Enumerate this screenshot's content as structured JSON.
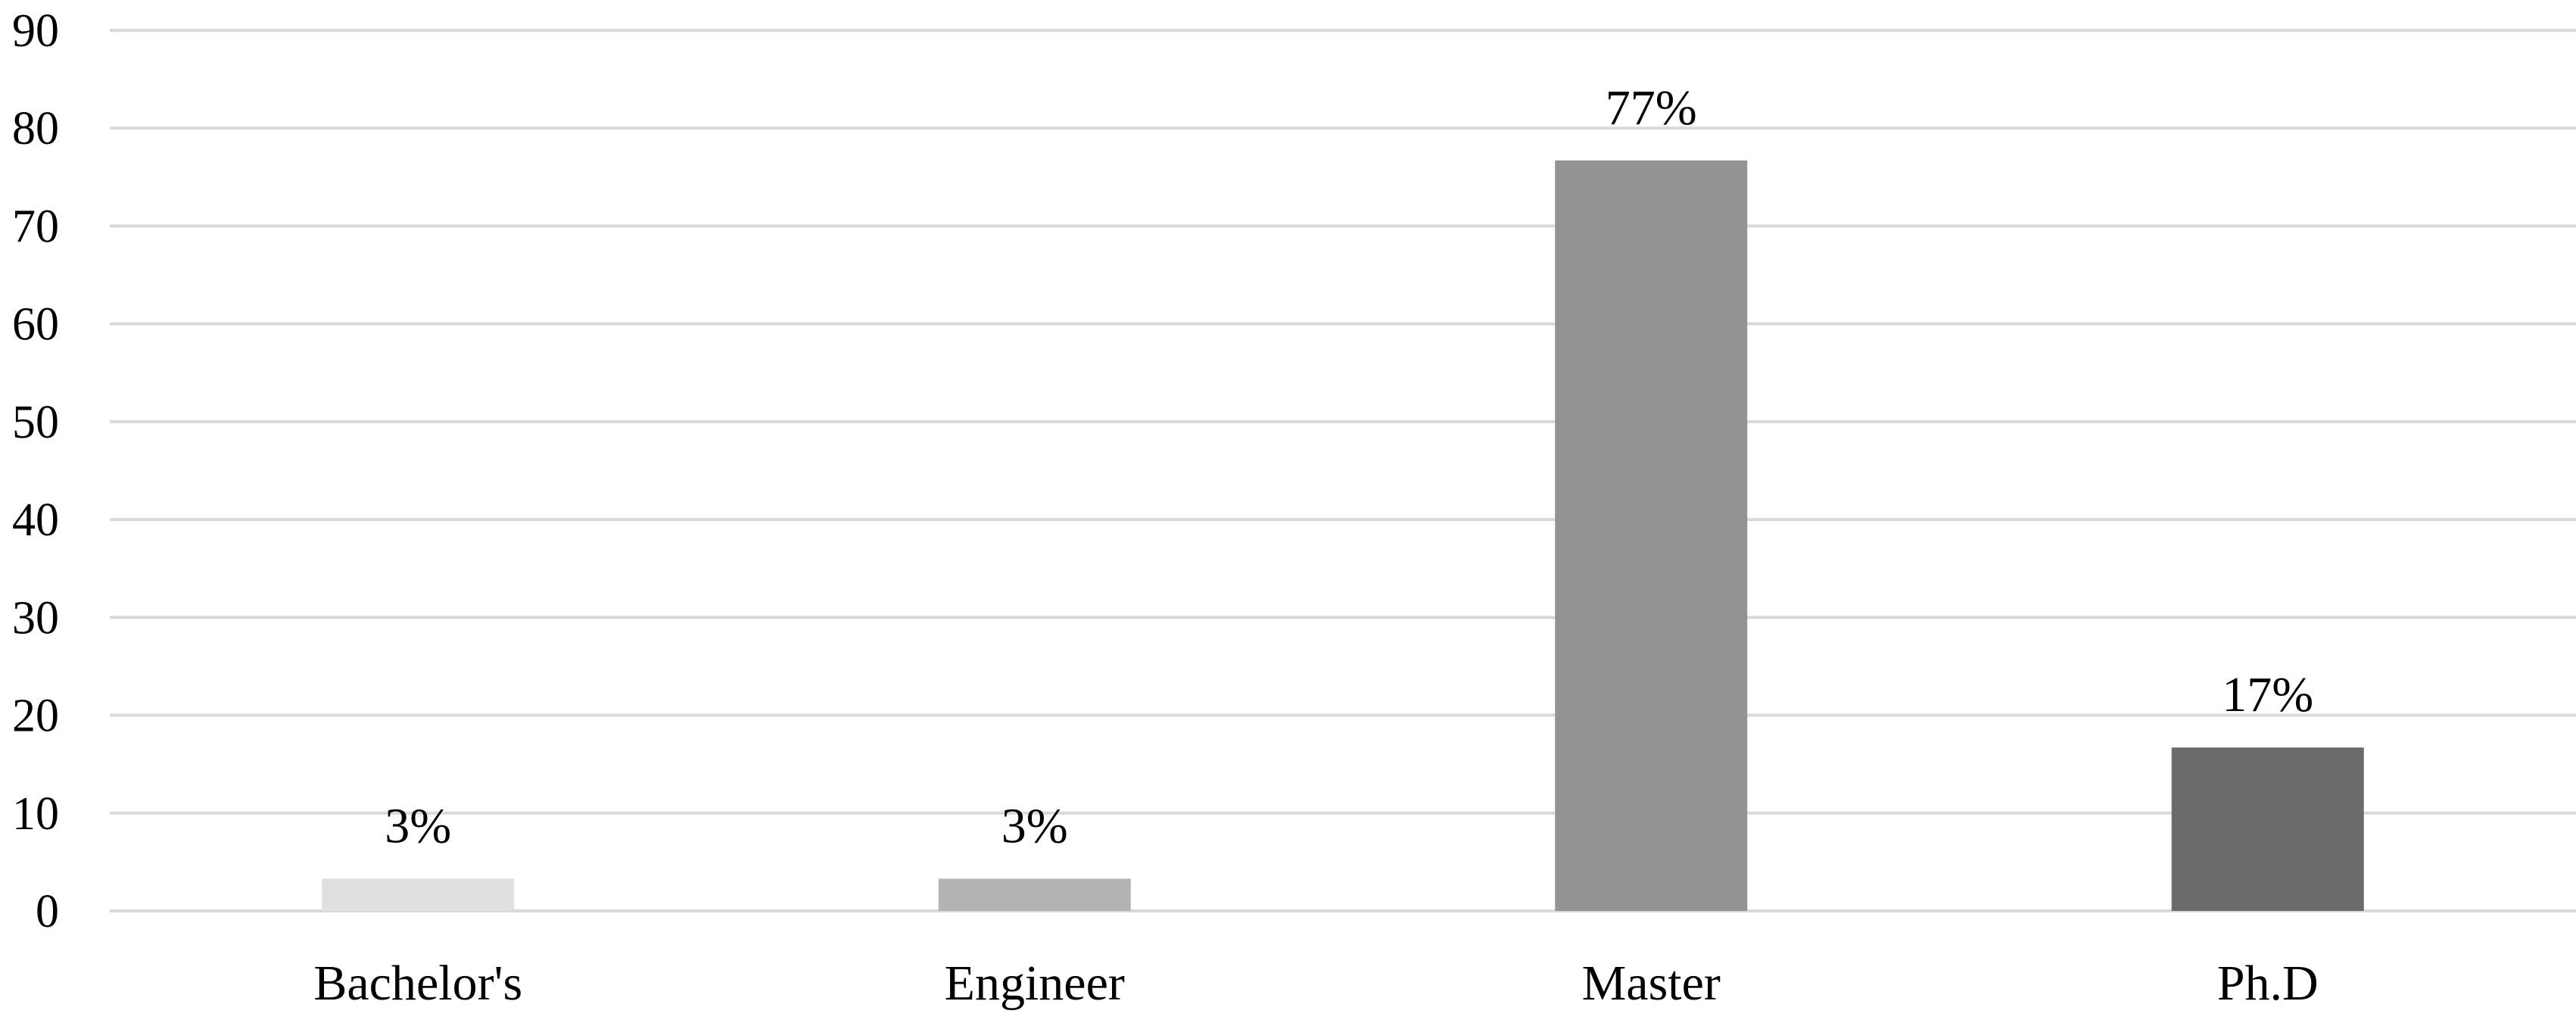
{
  "chart_data": {
    "type": "bar",
    "title": "",
    "xlabel": "",
    "ylabel": "",
    "categories": [
      "Bachelor's",
      "Engineer",
      "Master",
      "Ph.D"
    ],
    "values": [
      3.3,
      3.3,
      76.7,
      16.7
    ],
    "data_labels": [
      "3%",
      "3%",
      "77%",
      "17%"
    ],
    "bar_colors": [
      "#e0e0e0",
      "#b3b3b3",
      "#939393",
      "#6b6b6b"
    ],
    "ylim": [
      0,
      90
    ],
    "y_ticks": [
      0,
      10,
      20,
      30,
      40,
      50,
      60,
      70,
      80,
      90
    ],
    "grid": true,
    "gridline_color": "#d9d9d9",
    "legend": "none"
  }
}
